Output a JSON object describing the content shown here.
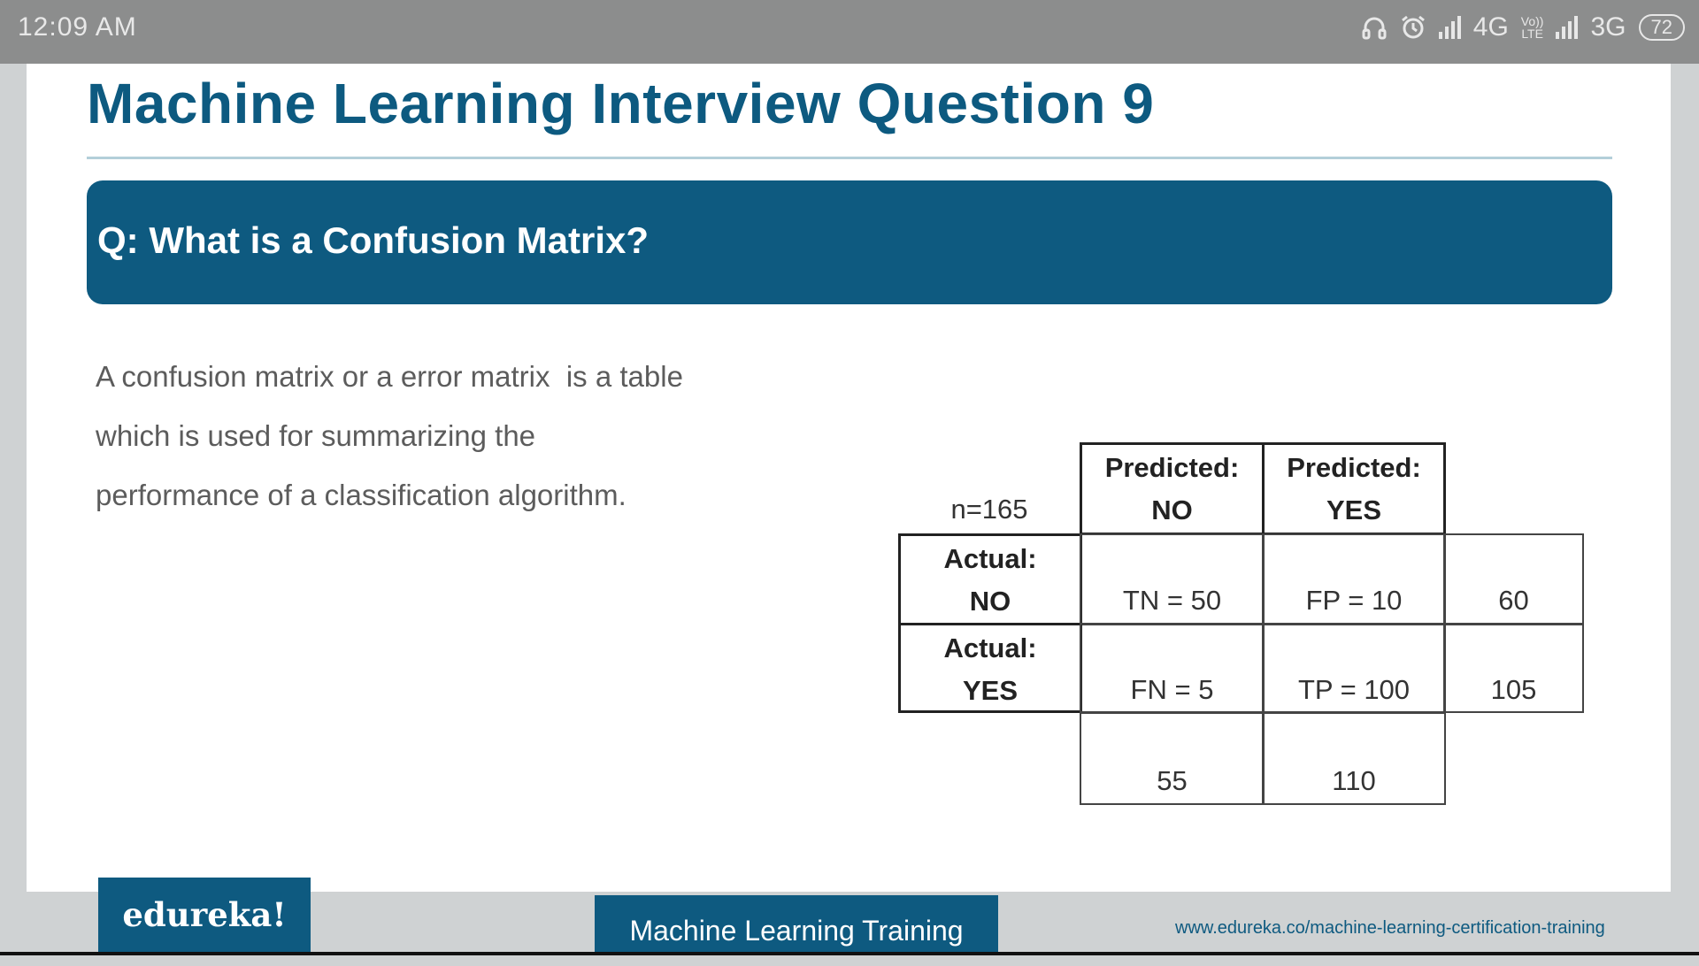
{
  "status_bar": {
    "time": "12:09 AM",
    "network_1": "4G",
    "volte_top": "Vo))",
    "volte_bottom": "LTE",
    "network_2": "3G",
    "battery": "72",
    "icons": [
      "headset-icon",
      "alarm-icon",
      "signal-icon",
      "volte-icon",
      "signal-icon",
      "battery-icon"
    ]
  },
  "slide": {
    "title": "Machine Learning Interview Question 9",
    "question": "Q: What is a Confusion Matrix?",
    "description_lines": [
      "A confusion matrix or a error matrix  is a table",
      "which is used for summarizing the",
      "performance of a classification algorithm."
    ],
    "matrix": {
      "n_label": "n=165",
      "col_headers": [
        {
          "line1": "Predicted:",
          "line2": "NO"
        },
        {
          "line1": "Predicted:",
          "line2": "YES"
        }
      ],
      "rows": [
        {
          "line1": "Actual:",
          "line2": "NO",
          "cells": [
            "TN = 50",
            "FP = 10"
          ],
          "total": "60"
        },
        {
          "line1": "Actual:",
          "line2": "YES",
          "cells": [
            "FN = 5",
            "TP = 100"
          ],
          "total": "105"
        }
      ],
      "col_totals": [
        "55",
        "110"
      ]
    }
  },
  "footer": {
    "logo": "edureka!",
    "course": "Machine Learning Training",
    "url": "www.edureka.co/machine-learning-certification-training"
  },
  "colors": {
    "brand_blue": "#0e5a80",
    "title_blue": "#0d5a80",
    "status_bar": "#8c8d8d"
  }
}
